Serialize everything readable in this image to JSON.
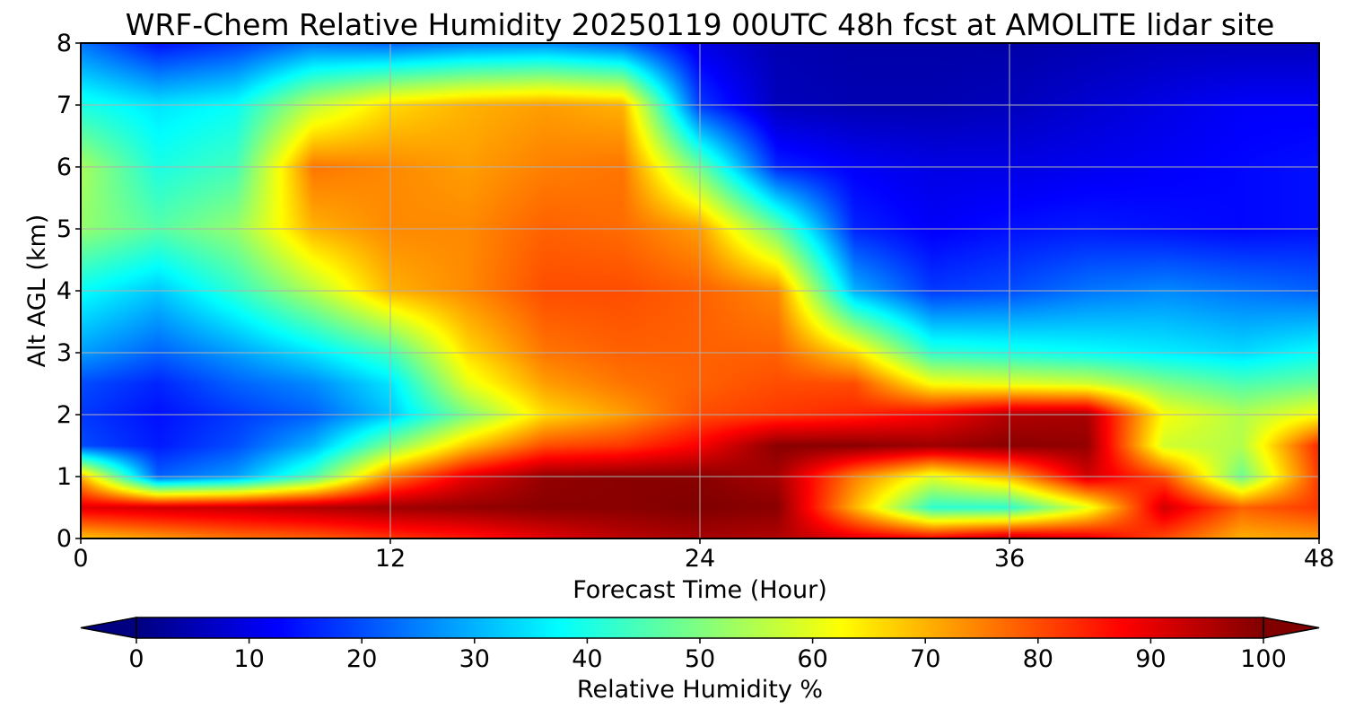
{
  "chart_data": {
    "type": "heatmap",
    "title": "WRF-Chem Relative Humidity 20250119 00UTC 48h fcst at AMOLITE lidar site",
    "xlabel": "Forecast Time (Hour)",
    "ylabel": "Alt AGL (km)",
    "xlim": [
      0,
      48
    ],
    "ylim": [
      0,
      8
    ],
    "xticks": [
      0,
      12,
      24,
      36,
      48
    ],
    "yticks": [
      0,
      1,
      2,
      3,
      4,
      5,
      6,
      7,
      8
    ],
    "grid": true,
    "colormap": "jet",
    "colorbar": {
      "label": "Relative Humidity %",
      "range": [
        0,
        100
      ],
      "ticks": [
        0,
        10,
        20,
        30,
        40,
        50,
        60,
        70,
        80,
        90,
        100
      ],
      "extend": "both",
      "orientation": "horizontal"
    },
    "x": [
      0,
      3,
      6,
      9,
      12,
      15,
      18,
      21,
      24,
      27,
      30,
      33,
      36,
      39,
      42,
      45,
      48
    ],
    "y": [
      0,
      0.5,
      1,
      1.5,
      2,
      2.5,
      3,
      4,
      5,
      6,
      7,
      8
    ],
    "values": [
      [
        68,
        72,
        76,
        78,
        82,
        85,
        90,
        94,
        96,
        95,
        90,
        88,
        94,
        90,
        80,
        70,
        72
      ],
      [
        90,
        92,
        93,
        95,
        97,
        98,
        99,
        99,
        100,
        99,
        70,
        42,
        42,
        60,
        92,
        78,
        82
      ],
      [
        70,
        22,
        28,
        45,
        75,
        90,
        98,
        99,
        99,
        96,
        75,
        60,
        70,
        92,
        80,
        48,
        82
      ],
      [
        20,
        15,
        20,
        30,
        50,
        68,
        80,
        82,
        88,
        99,
        99,
        97,
        99,
        98,
        58,
        55,
        84
      ],
      [
        18,
        14,
        18,
        22,
        32,
        50,
        66,
        72,
        80,
        82,
        84,
        88,
        95,
        96,
        62,
        55,
        62
      ],
      [
        20,
        16,
        22,
        26,
        35,
        60,
        72,
        76,
        78,
        80,
        80,
        62,
        60,
        58,
        50,
        45,
        48
      ],
      [
        28,
        22,
        28,
        35,
        44,
        66,
        76,
        78,
        78,
        78,
        66,
        42,
        40,
        38,
        36,
        34,
        38
      ],
      [
        38,
        32,
        42,
        55,
        70,
        74,
        80,
        80,
        78,
        74,
        30,
        18,
        20,
        24,
        26,
        24,
        22
      ],
      [
        52,
        46,
        52,
        70,
        74,
        74,
        78,
        77,
        72,
        48,
        16,
        12,
        14,
        15,
        14,
        13,
        14
      ],
      [
        54,
        40,
        44,
        76,
        74,
        72,
        75,
        76,
        48,
        16,
        12,
        10,
        10,
        11,
        12,
        13,
        14
      ],
      [
        40,
        35,
        38,
        56,
        66,
        70,
        72,
        70,
        18,
        6,
        5,
        5,
        6,
        8,
        10,
        12,
        12
      ],
      [
        24,
        14,
        18,
        24,
        22,
        25,
        26,
        22,
        10,
        5,
        4,
        4,
        4,
        5,
        6,
        6,
        6
      ]
    ]
  },
  "colors": {
    "axis": "#000000",
    "grid": "#b0b0b0"
  }
}
